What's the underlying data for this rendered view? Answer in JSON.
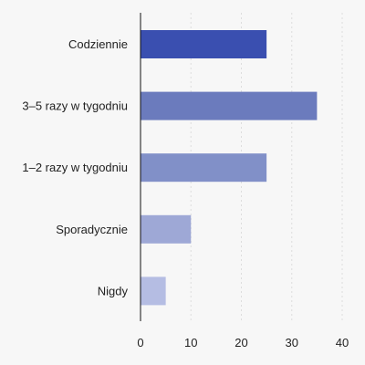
{
  "chart_data": {
    "type": "bar",
    "orientation": "horizontal",
    "categories": [
      "Codziennie",
      "3–5 razy w tygodniu",
      "1–2 razy w tygodniu",
      "Sporadycznie",
      "Nigdy"
    ],
    "values": [
      25,
      35,
      25,
      10,
      5
    ],
    "bar_colors": [
      "#3a4fb0",
      "#6b7bbd",
      "#8190c8",
      "#9ea8d6",
      "#b5bde3"
    ],
    "title": "",
    "xlabel": "",
    "ylabel": "",
    "xlim": [
      0,
      40
    ],
    "xticks": [
      0,
      10,
      20,
      30,
      40
    ],
    "grid": true,
    "legend": "none"
  }
}
